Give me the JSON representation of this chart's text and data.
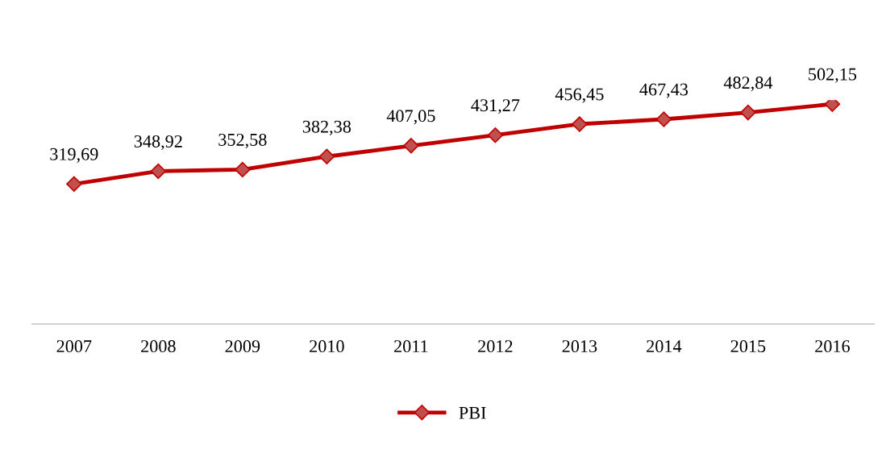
{
  "chart_data": {
    "type": "line",
    "categories": [
      "2007",
      "2008",
      "2009",
      "2010",
      "2011",
      "2012",
      "2013",
      "2014",
      "2015",
      "2016"
    ],
    "series": [
      {
        "name": "PBI",
        "color": "#c00000",
        "values": [
          319.69,
          348.92,
          352.58,
          382.38,
          407.05,
          431.27,
          456.45,
          467.43,
          482.84,
          502.15
        ],
        "value_labels": [
          "319,69",
          "348,92",
          "352,58",
          "382,38",
          "407,05",
          "431,27",
          "456,45",
          "467,43",
          "482,84",
          "502,15"
        ]
      }
    ],
    "tick_labels": "x",
    "marker": "diamond",
    "line_style": "solid",
    "legend": "bottom",
    "grid": false
  }
}
